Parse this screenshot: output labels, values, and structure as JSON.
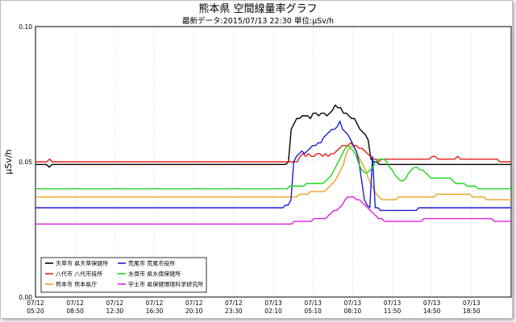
{
  "title": "熊本県 空間線量率グラフ",
  "subtitle": "最新データ:2015/07/13 22:30 単位:μSv/h",
  "chart_data": {
    "type": "line",
    "title": "熊本県 空間線量率グラフ",
    "subtitle": "最新データ:2015/07/13 22:30 単位:μSv/h",
    "ylabel": "μSv/h",
    "xlabel": "",
    "ylim": [
      0,
      0.1
    ],
    "yticks": [
      "0.00",
      "0.05",
      "0.10"
    ],
    "grid": true,
    "legend_position": "bottom-left",
    "x_tick_labels": [
      {
        "date": "07/12",
        "time": "05:20"
      },
      {
        "date": "07/12",
        "time": "08:50"
      },
      {
        "date": "07/12",
        "time": "12:30"
      },
      {
        "date": "07/12",
        "time": "16:30"
      },
      {
        "date": "07/12",
        "time": "20:10"
      },
      {
        "date": "07/12",
        "time": "23:30"
      },
      {
        "date": "07/13",
        "time": "02:10"
      },
      {
        "date": "07/13",
        "time": "05:10"
      },
      {
        "date": "07/13",
        "time": "08:10"
      },
      {
        "date": "07/13",
        "time": "11:50"
      },
      {
        "date": "07/13",
        "time": "14:50"
      },
      {
        "date": "07/13",
        "time": "18:50"
      }
    ],
    "series": [
      {
        "name": "天草市 県天草保健所",
        "color": "#000000",
        "values": [
          0.049,
          0.049,
          0.049,
          0.049,
          0.049,
          0.048,
          0.049,
          0.049,
          0.049,
          0.049,
          0.049,
          0.049,
          0.049,
          0.049,
          0.049,
          0.049,
          0.049,
          0.049,
          0.049,
          0.049,
          0.049,
          0.049,
          0.049,
          0.049,
          0.049,
          0.049,
          0.049,
          0.049,
          0.049,
          0.049,
          0.049,
          0.049,
          0.049,
          0.049,
          0.049,
          0.049,
          0.049,
          0.049,
          0.049,
          0.049,
          0.049,
          0.049,
          0.049,
          0.049,
          0.049,
          0.049,
          0.049,
          0.049,
          0.049,
          0.049,
          0.049,
          0.049,
          0.049,
          0.049,
          0.049,
          0.049,
          0.049,
          0.049,
          0.049,
          0.049,
          0.049,
          0.049,
          0.049,
          0.049,
          0.049,
          0.049,
          0.049,
          0.049,
          0.049,
          0.049,
          0.049,
          0.049,
          0.049,
          0.049,
          0.049,
          0.049,
          0.049,
          0.049,
          0.049,
          0.049,
          0.049,
          0.049,
          0.049,
          0.049,
          0.049,
          0.049,
          0.049,
          0.049,
          0.049,
          0.049,
          0.049,
          0.049,
          0.05,
          0.062,
          0.064,
          0.066,
          0.066,
          0.067,
          0.067,
          0.067,
          0.066,
          0.068,
          0.068,
          0.067,
          0.068,
          0.068,
          0.067,
          0.068,
          0.069,
          0.071,
          0.07,
          0.07,
          0.068,
          0.068,
          0.067,
          0.066,
          0.066,
          0.064,
          0.062,
          0.061,
          0.06,
          0.058,
          0.051,
          0.05,
          0.05,
          0.049,
          0.049,
          0.049,
          0.049,
          0.049,
          0.049,
          0.049,
          0.049,
          0.049,
          0.049,
          0.049,
          0.049,
          0.049,
          0.049,
          0.049,
          0.049,
          0.049,
          0.049,
          0.049,
          0.049,
          0.049,
          0.049,
          0.049,
          0.049,
          0.049,
          0.049,
          0.049,
          0.049,
          0.049,
          0.049,
          0.049,
          0.049,
          0.049,
          0.049,
          0.049,
          0.049,
          0.049,
          0.049,
          0.049,
          0.049,
          0.049,
          0.049,
          0.049,
          0.049,
          0.049,
          0.049,
          0.049,
          0.049,
          0.049
        ]
      },
      {
        "name": "八代市 八代市役所",
        "color": "#e0201a",
        "values": [
          0.05,
          0.05,
          0.05,
          0.05,
          0.05,
          0.051,
          0.05,
          0.05,
          0.05,
          0.05,
          0.05,
          0.05,
          0.05,
          0.05,
          0.05,
          0.05,
          0.05,
          0.05,
          0.05,
          0.05,
          0.05,
          0.05,
          0.05,
          0.05,
          0.05,
          0.05,
          0.05,
          0.05,
          0.05,
          0.05,
          0.05,
          0.05,
          0.05,
          0.05,
          0.05,
          0.05,
          0.05,
          0.05,
          0.05,
          0.05,
          0.05,
          0.05,
          0.05,
          0.05,
          0.05,
          0.05,
          0.05,
          0.05,
          0.05,
          0.05,
          0.05,
          0.05,
          0.05,
          0.05,
          0.05,
          0.05,
          0.05,
          0.05,
          0.05,
          0.05,
          0.05,
          0.05,
          0.05,
          0.05,
          0.05,
          0.05,
          0.05,
          0.05,
          0.05,
          0.05,
          0.05,
          0.05,
          0.05,
          0.05,
          0.05,
          0.05,
          0.05,
          0.05,
          0.05,
          0.05,
          0.05,
          0.05,
          0.05,
          0.05,
          0.05,
          0.05,
          0.05,
          0.05,
          0.05,
          0.05,
          0.05,
          0.05,
          0.05,
          0.05,
          0.052,
          0.053,
          0.052,
          0.053,
          0.052,
          0.052,
          0.053,
          0.053,
          0.052,
          0.053,
          0.052,
          0.053,
          0.053,
          0.054,
          0.055,
          0.056,
          0.056,
          0.056,
          0.057,
          0.056,
          0.056,
          0.055,
          0.055,
          0.054,
          0.053,
          0.052,
          0.051,
          0.051,
          0.05,
          0.051,
          0.051,
          0.051,
          0.051,
          0.051,
          0.051,
          0.051,
          0.051,
          0.051,
          0.051,
          0.051,
          0.051,
          0.051,
          0.051,
          0.051,
          0.051,
          0.051,
          0.051,
          0.052,
          0.052,
          0.051,
          0.051,
          0.051,
          0.051,
          0.051,
          0.051,
          0.051,
          0.052,
          0.051,
          0.051,
          0.051,
          0.051,
          0.051,
          0.051,
          0.051,
          0.051,
          0.051,
          0.051,
          0.051,
          0.051,
          0.051,
          0.051,
          0.05,
          0.05,
          0.05,
          0.05,
          0.05
        ]
      },
      {
        "name": "熊本市 熊本県庁",
        "color": "#f0a020",
        "values": [
          0.037,
          0.037,
          0.037,
          0.037,
          0.037,
          0.037,
          0.037,
          0.037,
          0.037,
          0.037,
          0.037,
          0.037,
          0.037,
          0.037,
          0.037,
          0.037,
          0.037,
          0.037,
          0.037,
          0.037,
          0.037,
          0.037,
          0.037,
          0.037,
          0.037,
          0.037,
          0.037,
          0.037,
          0.037,
          0.037,
          0.037,
          0.037,
          0.037,
          0.037,
          0.037,
          0.037,
          0.037,
          0.037,
          0.037,
          0.037,
          0.037,
          0.037,
          0.037,
          0.037,
          0.037,
          0.037,
          0.037,
          0.037,
          0.037,
          0.037,
          0.037,
          0.037,
          0.037,
          0.037,
          0.037,
          0.037,
          0.037,
          0.037,
          0.037,
          0.037,
          0.037,
          0.037,
          0.037,
          0.037,
          0.037,
          0.037,
          0.037,
          0.037,
          0.037,
          0.037,
          0.037,
          0.037,
          0.037,
          0.037,
          0.037,
          0.037,
          0.037,
          0.037,
          0.037,
          0.037,
          0.037,
          0.037,
          0.037,
          0.037,
          0.037,
          0.037,
          0.037,
          0.037,
          0.037,
          0.037,
          0.037,
          0.037,
          0.037,
          0.037,
          0.037,
          0.037,
          0.038,
          0.038,
          0.038,
          0.038,
          0.039,
          0.039,
          0.039,
          0.039,
          0.039,
          0.039,
          0.04,
          0.041,
          0.042,
          0.043,
          0.045,
          0.047,
          0.049,
          0.053,
          0.055,
          0.056,
          0.055,
          0.053,
          0.051,
          0.049,
          0.047,
          0.044,
          0.042,
          0.04,
          0.038,
          0.037,
          0.036,
          0.036,
          0.036,
          0.036,
          0.036,
          0.036,
          0.037,
          0.037,
          0.037,
          0.037,
          0.037,
          0.037,
          0.037,
          0.037,
          0.037,
          0.037,
          0.037,
          0.037,
          0.037,
          0.037,
          0.038,
          0.038,
          0.038,
          0.038,
          0.038,
          0.038,
          0.038,
          0.038,
          0.038,
          0.038,
          0.038,
          0.038,
          0.038,
          0.037,
          0.037,
          0.037,
          0.037,
          0.037,
          0.036,
          0.036,
          0.036,
          0.036,
          0.036,
          0.036,
          0.036,
          0.036,
          0.036,
          0.036
        ]
      },
      {
        "name": "荒尾市 荒尾市役所",
        "color": "#1c1cd6",
        "values": [
          0.033,
          0.033,
          0.033,
          0.033,
          0.033,
          0.033,
          0.033,
          0.033,
          0.033,
          0.033,
          0.033,
          0.033,
          0.033,
          0.033,
          0.033,
          0.033,
          0.033,
          0.033,
          0.033,
          0.033,
          0.033,
          0.033,
          0.033,
          0.033,
          0.033,
          0.033,
          0.033,
          0.033,
          0.033,
          0.033,
          0.033,
          0.033,
          0.033,
          0.033,
          0.033,
          0.033,
          0.033,
          0.033,
          0.033,
          0.033,
          0.033,
          0.033,
          0.033,
          0.033,
          0.033,
          0.033,
          0.033,
          0.033,
          0.033,
          0.033,
          0.033,
          0.033,
          0.033,
          0.033,
          0.033,
          0.033,
          0.033,
          0.033,
          0.033,
          0.033,
          0.033,
          0.033,
          0.033,
          0.033,
          0.033,
          0.033,
          0.033,
          0.033,
          0.033,
          0.033,
          0.033,
          0.033,
          0.033,
          0.033,
          0.033,
          0.033,
          0.033,
          0.033,
          0.033,
          0.033,
          0.033,
          0.033,
          0.033,
          0.033,
          0.033,
          0.033,
          0.033,
          0.033,
          0.033,
          0.033,
          0.033,
          0.033,
          0.034,
          0.034,
          0.036,
          0.05,
          0.052,
          0.053,
          0.054,
          0.053,
          0.054,
          0.055,
          0.056,
          0.056,
          0.057,
          0.057,
          0.059,
          0.06,
          0.061,
          0.062,
          0.062,
          0.063,
          0.065,
          0.062,
          0.061,
          0.06,
          0.058,
          0.056,
          0.054,
          0.05,
          0.043,
          0.036,
          0.034,
          0.033,
          0.052,
          0.033,
          0.033,
          0.032,
          0.032,
          0.032,
          0.032,
          0.032,
          0.032,
          0.032,
          0.032,
          0.032,
          0.032,
          0.032,
          0.032,
          0.032,
          0.032,
          0.033,
          0.033,
          0.033,
          0.033,
          0.033,
          0.033,
          0.033,
          0.033,
          0.033,
          0.033,
          0.033,
          0.033,
          0.033,
          0.033,
          0.033,
          0.033,
          0.033,
          0.033,
          0.033,
          0.033,
          0.033,
          0.033,
          0.033,
          0.033,
          0.033,
          0.033,
          0.033,
          0.033,
          0.033,
          0.033,
          0.033,
          0.033,
          0.033,
          0.033,
          0.033
        ]
      },
      {
        "name": "水俣市 県水俣保健所",
        "color": "#1ed61e",
        "values": [
          0.04,
          0.04,
          0.04,
          0.04,
          0.04,
          0.04,
          0.04,
          0.04,
          0.04,
          0.04,
          0.04,
          0.04,
          0.04,
          0.04,
          0.04,
          0.04,
          0.04,
          0.04,
          0.04,
          0.04,
          0.04,
          0.04,
          0.04,
          0.04,
          0.04,
          0.04,
          0.04,
          0.04,
          0.04,
          0.04,
          0.04,
          0.04,
          0.04,
          0.04,
          0.04,
          0.04,
          0.04,
          0.04,
          0.04,
          0.04,
          0.04,
          0.04,
          0.04,
          0.04,
          0.04,
          0.04,
          0.04,
          0.04,
          0.04,
          0.04,
          0.04,
          0.04,
          0.04,
          0.04,
          0.04,
          0.04,
          0.04,
          0.04,
          0.04,
          0.04,
          0.04,
          0.04,
          0.04,
          0.04,
          0.04,
          0.04,
          0.04,
          0.04,
          0.04,
          0.04,
          0.04,
          0.04,
          0.04,
          0.04,
          0.04,
          0.04,
          0.04,
          0.04,
          0.04,
          0.04,
          0.04,
          0.04,
          0.04,
          0.04,
          0.04,
          0.04,
          0.04,
          0.04,
          0.04,
          0.04,
          0.04,
          0.04,
          0.041,
          0.041,
          0.041,
          0.041,
          0.041,
          0.041,
          0.042,
          0.042,
          0.042,
          0.042,
          0.042,
          0.042,
          0.042,
          0.043,
          0.044,
          0.045,
          0.047,
          0.049,
          0.051,
          0.053,
          0.055,
          0.056,
          0.055,
          0.054,
          0.052,
          0.049,
          0.047,
          0.046,
          0.046,
          0.047,
          0.048,
          0.05,
          0.051,
          0.051,
          0.051,
          0.05,
          0.048,
          0.047,
          0.045,
          0.044,
          0.043,
          0.043,
          0.044,
          0.046,
          0.047,
          0.048,
          0.048,
          0.047,
          0.047,
          0.046,
          0.045,
          0.044,
          0.044,
          0.044,
          0.044,
          0.044,
          0.044,
          0.044,
          0.044,
          0.043,
          0.042,
          0.042,
          0.042,
          0.042,
          0.041,
          0.041,
          0.041,
          0.041,
          0.04,
          0.04,
          0.04,
          0.04,
          0.04,
          0.04,
          0.04,
          0.04,
          0.04,
          0.04,
          0.04,
          0.04,
          0.04
        ]
      },
      {
        "name": "宇土市 県保健環境科学研究所",
        "color": "#e020e0",
        "values": [
          0.027,
          0.027,
          0.027,
          0.027,
          0.027,
          0.027,
          0.027,
          0.027,
          0.027,
          0.027,
          0.027,
          0.027,
          0.027,
          0.027,
          0.027,
          0.027,
          0.027,
          0.027,
          0.027,
          0.027,
          0.027,
          0.027,
          0.027,
          0.027,
          0.027,
          0.027,
          0.027,
          0.027,
          0.027,
          0.027,
          0.027,
          0.027,
          0.027,
          0.027,
          0.027,
          0.027,
          0.027,
          0.027,
          0.027,
          0.027,
          0.027,
          0.027,
          0.027,
          0.027,
          0.027,
          0.027,
          0.027,
          0.027,
          0.027,
          0.027,
          0.027,
          0.027,
          0.027,
          0.027,
          0.027,
          0.027,
          0.027,
          0.027,
          0.027,
          0.027,
          0.027,
          0.027,
          0.027,
          0.027,
          0.027,
          0.027,
          0.027,
          0.027,
          0.027,
          0.027,
          0.027,
          0.027,
          0.027,
          0.027,
          0.027,
          0.027,
          0.027,
          0.027,
          0.027,
          0.027,
          0.027,
          0.027,
          0.027,
          0.027,
          0.027,
          0.027,
          0.027,
          0.027,
          0.027,
          0.027,
          0.027,
          0.027,
          0.028,
          0.028,
          0.028,
          0.028,
          0.028,
          0.028,
          0.028,
          0.029,
          0.029,
          0.029,
          0.029,
          0.029,
          0.03,
          0.031,
          0.032,
          0.032,
          0.033,
          0.034,
          0.036,
          0.037,
          0.037,
          0.037,
          0.036,
          0.036,
          0.035,
          0.034,
          0.033,
          0.032,
          0.031,
          0.03,
          0.029,
          0.029,
          0.028,
          0.028,
          0.028,
          0.028,
          0.028,
          0.028,
          0.028,
          0.028,
          0.028,
          0.028,
          0.028,
          0.028,
          0.028,
          0.028,
          0.029,
          0.029,
          0.029,
          0.029,
          0.029,
          0.029,
          0.029,
          0.029,
          0.029,
          0.029,
          0.029,
          0.029,
          0.029,
          0.029,
          0.029,
          0.029,
          0.029,
          0.029,
          0.029,
          0.029,
          0.029,
          0.029,
          0.029,
          0.029,
          0.029,
          0.028,
          0.028,
          0.028,
          0.028,
          0.028,
          0.028,
          0.028
        ]
      }
    ]
  }
}
